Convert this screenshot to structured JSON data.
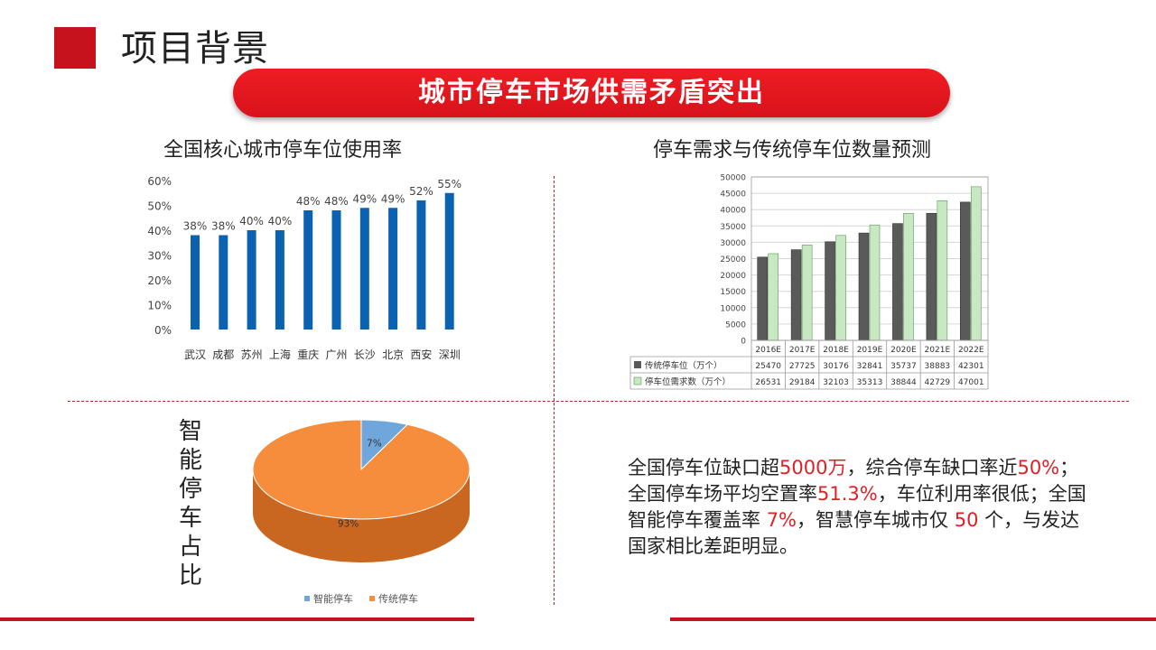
{
  "header": {
    "title": "项目背景"
  },
  "banner": {
    "text": "城市停车市场供需矛盾突出"
  },
  "section_titles": {
    "usage": "全国核心城市停车位使用率",
    "forecast": "停车需求与传统停车位数量预测"
  },
  "side_label": "智能停车占比",
  "info": {
    "t1": "全国停车位缺口超",
    "h1": "5000万",
    "t2": "，综合停车缺口率近",
    "h2": "50%",
    "t3": "；全国停车场平均空置率",
    "h3": "51.3%",
    "t4": "，车位利用率很低；全国智能停车覆盖率 ",
    "h4": "7%",
    "t5": "，智慧停车城市仅 ",
    "h5": "50",
    "t6": " 个，与发达国家相比差距明显。"
  },
  "colors": {
    "accent": "#c5121c",
    "banner": "#e81b22",
    "bar_blue": "#0b62b0",
    "dark_grey": "#5a5a5a",
    "light_green": "#c7e8c3",
    "pie_orange": "#f58d3c",
    "pie_blue": "#6fa7dd"
  },
  "chart_data": [
    {
      "type": "bar",
      "title": "全国核心城市停车位使用率",
      "categories": [
        "武汉",
        "成都",
        "苏州",
        "上海",
        "重庆",
        "广州",
        "长沙",
        "北京",
        "西安",
        "深圳"
      ],
      "values": [
        38,
        38,
        40,
        40,
        48,
        48,
        49,
        49,
        52,
        55
      ],
      "data_labels": [
        "38%",
        "38%",
        "40%",
        "40%",
        "48%",
        "48%",
        "49%",
        "49%",
        "52%",
        "55%"
      ],
      "yticks": [
        "0%",
        "10%",
        "20%",
        "30%",
        "40%",
        "50%",
        "60%"
      ],
      "ylim": [
        0,
        60
      ],
      "grid": false
    },
    {
      "type": "bar",
      "title": "停车需求与传统停车位数量预测",
      "categories": [
        "2016E",
        "2017E",
        "2018E",
        "2019E",
        "2020E",
        "2021E",
        "2022E"
      ],
      "series": [
        {
          "name": "传统停车位（万个）",
          "values": [
            25470,
            27725,
            30176,
            32841,
            35737,
            38883,
            42301
          ]
        },
        {
          "name": "停车位需求数（万个）",
          "values": [
            26531,
            29184,
            32103,
            35313,
            38844,
            42729,
            47001
          ]
        }
      ],
      "yticks": [
        "0",
        "5000",
        "10000",
        "15000",
        "20000",
        "25000",
        "30000",
        "35000",
        "40000",
        "45000",
        "50000"
      ],
      "ylim": [
        0,
        50000
      ],
      "grid": true,
      "data_table": true
    },
    {
      "type": "pie",
      "slices": [
        {
          "name": "智能停车",
          "value": 7,
          "label": "7%"
        },
        {
          "name": "传统停车",
          "value": 93,
          "label": "93%"
        }
      ],
      "legend": "bottom"
    }
  ]
}
